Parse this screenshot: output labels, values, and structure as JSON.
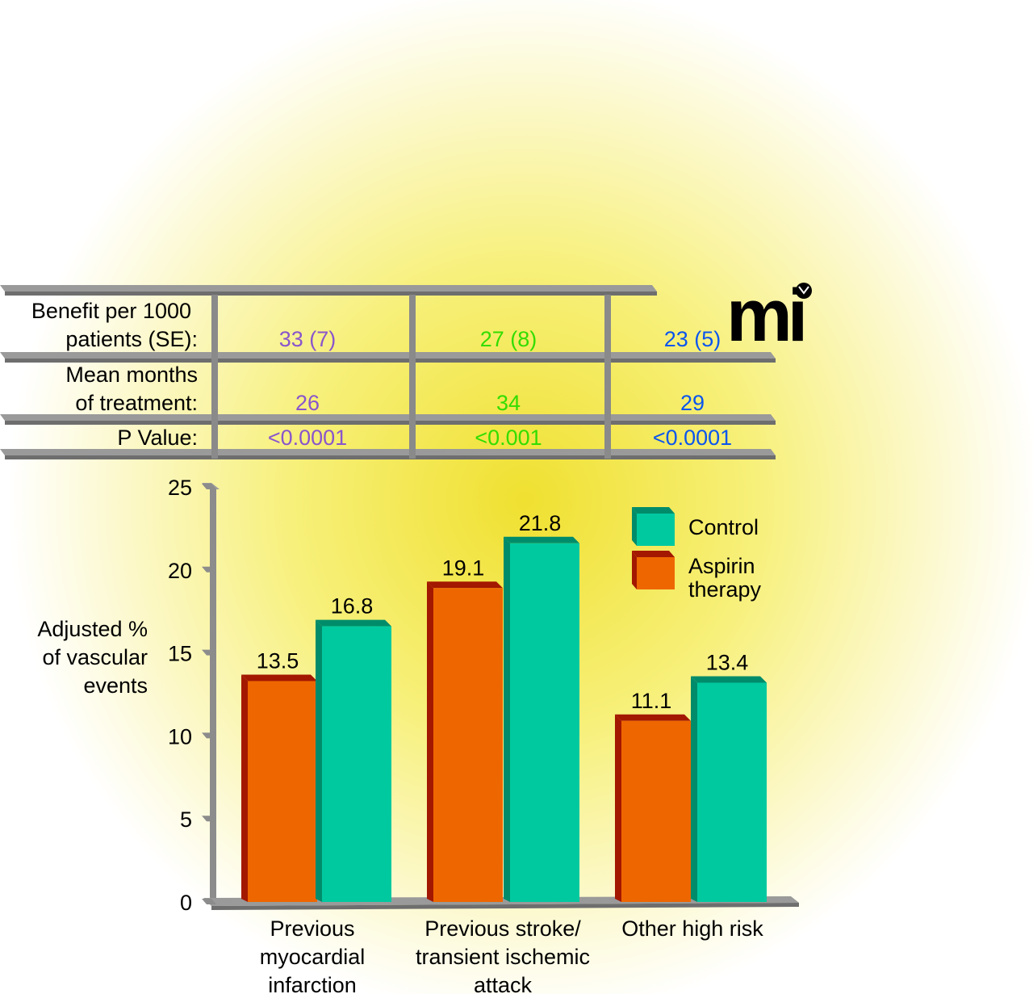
{
  "logo": "mi",
  "table": {
    "row_labels": [
      [
        "Benefit per 1000",
        "patients (SE):"
      ],
      [
        "Mean months",
        "of treatment:"
      ],
      [
        "P Value:"
      ]
    ],
    "columns": [
      {
        "color": "#8a55cc",
        "values": [
          "33 (7)",
          "26",
          "<0.0001"
        ]
      },
      {
        "color": "#33dd00",
        "values": [
          "27 (8)",
          "34",
          "<0.001"
        ]
      },
      {
        "color": "#0a55ee",
        "values": [
          "23 (5)",
          "29",
          "<0.0001"
        ]
      }
    ]
  },
  "chart_data": {
    "type": "bar",
    "categories": [
      [
        "Previous",
        "myocardial",
        "infarction"
      ],
      [
        "Previous stroke/",
        "transient ischemic",
        "attack"
      ],
      [
        "Other high risk"
      ]
    ],
    "series": [
      {
        "name": "Aspirin therapy",
        "legend_lines": [
          "Aspirin",
          "therapy"
        ],
        "color": "#ee6600",
        "side": "#a31800",
        "values": [
          13.5,
          19.1,
          11.1
        ]
      },
      {
        "name": "Control",
        "legend_lines": [
          "Control"
        ],
        "color": "#00c9a0",
        "side": "#008c6a",
        "values": [
          16.8,
          21.8,
          13.4
        ]
      }
    ],
    "ylabel": [
      "Adjusted %",
      "of vascular",
      "events"
    ],
    "xlabel": "",
    "ylim": [
      0,
      25
    ],
    "yticks": [
      "0",
      "5",
      "10",
      "15",
      "20",
      "25"
    ],
    "legend": "top-right",
    "grid": false
  }
}
